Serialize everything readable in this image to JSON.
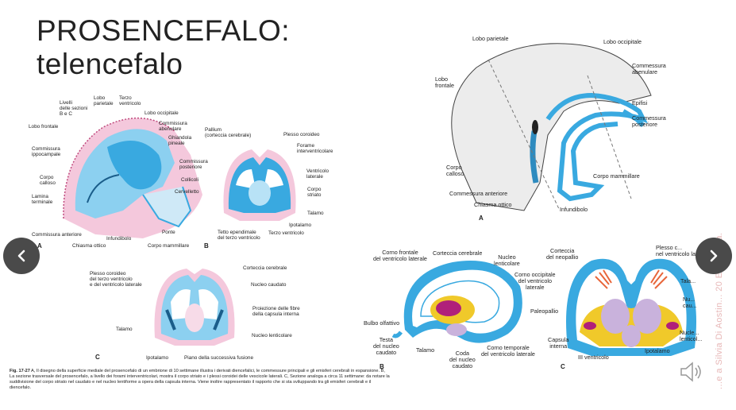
{
  "slide": {
    "title_line1": "PROSENCEFALO:",
    "title_line2": "telencefalo"
  },
  "figA": {
    "letter": "A",
    "lobo_parietale": "Lobo parietale",
    "lobo_occipitale": "Lobo occipitale",
    "lobo_frontale": "Lobo\nfrontale",
    "commessura_abenulare": "Commessura\nabenulare",
    "epifisi": "Epifisi",
    "commessura_posteriore": "Commessura\nposteriore",
    "corpo_calloso": "Corpo\ncalloso",
    "corpo_mammillare": "Corpo mammillare",
    "commessura_anteriore": "Commessura anteriore",
    "chiasma_ottico": "Chiasma ottico",
    "infundibolo": "Infundibolo"
  },
  "figB": {
    "letter": "B",
    "corno_frontale": "Corno frontale\ndel ventricolo laterale",
    "corteccia_cerebrale": "Corteccia cerebrale",
    "nucleo_lenticolare": "Nucleo\nlenticolare",
    "corno_occipitale": "Corno occipitale\ndel ventricolo\nlaterale",
    "bulbo_olfattivo": "Bulbo olfattivo",
    "testa_nucleo": "Testa\ndel nucleo\ncaudato",
    "talamo": "Talamo",
    "coda_nucleo": "Coda\ndel nucleo\ncaudato",
    "corno_temporale": "Corno temporale\ndel ventricolo laterale"
  },
  "figC": {
    "letter": "C",
    "corteccia_neopallio": "Corteccia\ndel neopallio",
    "plesso": "Plesso c...\nnel ventricolo lat...",
    "paleopallio": "Paleopallio",
    "capsula_interna": "Capsula\ninterna",
    "terzo_ventricolo": "III ventricolo",
    "ipotalamo": "Ipotalamo",
    "talamo_cut": "Tala...",
    "nucleo_cut": "Nu...\ncau...",
    "nucleo_lenticolare_cut": "Nucle...\nlenticol..."
  },
  "leftFigAB": {
    "letter_a": "A",
    "letter_b": "B",
    "livelli": "Livelli\ndelle sezioni\nB e C",
    "lobo_parietale": "Lobo\nparietale",
    "terzo_ventricolo": "Terzo\nventricolo",
    "lobo_occipitale": "Lobo occipitale",
    "commessura_abenulare": "Commissura\nabenulare",
    "ghiandola_pineale": "Ghiandola\npineale",
    "commessura_posteriore": "Commissura\nposteriore",
    "collicoli": "Collicoli",
    "cervelletto": "Cervelletto",
    "lobo_frontale": "Lobo frontale",
    "commessura_ippocampale": "Commissura\nippocampale",
    "corpo_calloso": "Corpo\ncalloso",
    "lamina_terminale": "Lamina\nterminale",
    "commessura_anteriore": "Commissura anteriore",
    "infundibolo": "Infundibolo",
    "chiasma_ottico": "Chiasma ottico",
    "corpo_mammillare": "Corpo mammillare",
    "ponte": "Ponte",
    "pallium": "Pallium\n(corteccia cerebrale)",
    "plesso_coroideo": "Plesso coroideo",
    "forame": "Forame\ninterventricolare",
    "ventricolo_laterale": "Ventricolo\nlaterale",
    "corpo_striato": "Corpo\nstriato",
    "talamo": "Talamo",
    "ipotalamo": "Ipotalamo",
    "tetto": "Tetto ependimale\ndel terzo ventricolo",
    "terzo_ventricolo2": "Terzo ventricolo"
  },
  "leftFigC": {
    "letter": "C",
    "corteccia_cerebrale": "Corteccia cerebrale",
    "plesso": "Plesso coroideo\ndel terzo ventricolo\ne del ventricolo laterale",
    "nucleo_caudato": "Nucleo caudato",
    "proiezione": "Proiezione delle fibre\ndella capsula interna",
    "talamo": "Talamo",
    "nucleo_lenticolare": "Nucleo lenticolare",
    "ipotalamo": "Ipotalamo",
    "piano": "Piano della successiva fusione"
  },
  "caption": {
    "fig": "Fig. 17-27",
    "text": " A, Il disegno della superficie mediale del prosencefalo di un embrione di 10 settimane illustra i derivati diencefalici, le commessure principali e gli emisferi cerebrali in espansione. B, La sezione trasversale del prosencefalo, a livello dei forami interventricolari, mostra il corpo striato e i plessi coroidei delle vescicole laterali. C, Sezione analoga a circa 11 settimane: da notare la suddivisione del corpo striato nel caudato e nel nucleo lentiforme a opera della capsula interna. Viene inoltre rappresentato il rapporto che si sta sviluppando tra gli emisferi cerebrali e il diencefalo."
  },
  "watermark": "...e a Silvia Di Aostin... 20 Edra s.p.a.",
  "nav": {
    "prev_icon": "chevron-left-icon",
    "next_icon": "chevron-right-icon"
  },
  "colors": {
    "blue": "#39a9e0",
    "pink": "#e58cb4",
    "nav": "#4a4a4a"
  }
}
